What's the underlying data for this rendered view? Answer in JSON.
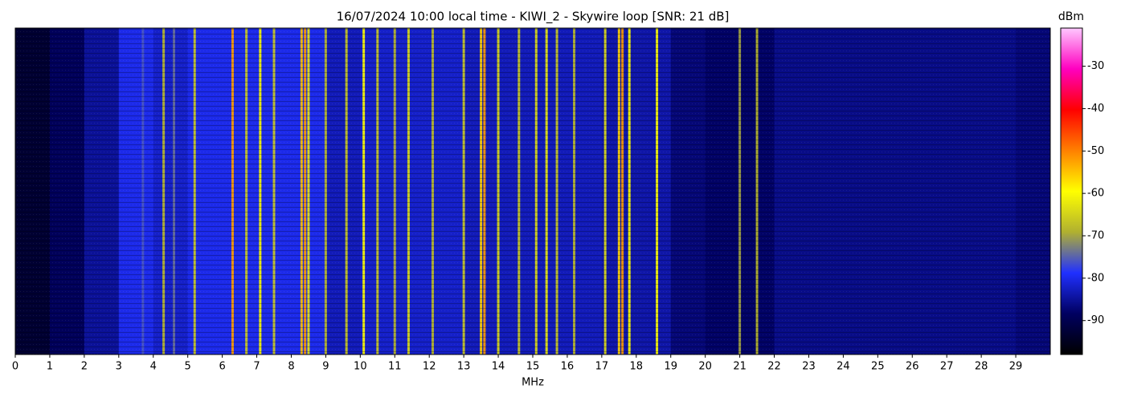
{
  "chart_data": {
    "type": "spectrogram",
    "title": "16/07/2024 10:00 local time - KIWI_2 - Skywire loop [SNR: 21 dB]",
    "x_label": "MHz",
    "colorbar_label": "dBm",
    "xlim": [
      0,
      30
    ],
    "xticks": [
      0,
      1,
      2,
      3,
      4,
      5,
      6,
      7,
      8,
      9,
      10,
      11,
      12,
      13,
      14,
      15,
      16,
      17,
      18,
      19,
      20,
      21,
      22,
      23,
      24,
      25,
      26,
      27,
      28,
      29
    ],
    "clim": [
      -98,
      -21
    ],
    "cticks": [
      -90,
      -80,
      -70,
      -60,
      -50,
      -40,
      -30
    ],
    "colormap": [
      "#000000",
      "#000060",
      "#2030ff",
      "#b0b030",
      "#ffff00",
      "#ff8000",
      "#ff0000",
      "#ff00c0",
      "#ffc8ff"
    ],
    "noise_floor": {
      "bins": [
        0,
        1,
        2,
        3,
        4,
        5,
        6,
        7,
        8,
        9,
        10,
        11,
        12,
        13,
        14,
        15,
        16,
        17,
        18,
        19,
        20,
        21,
        22,
        23,
        24,
        25,
        26,
        27,
        28,
        29,
        30
      ],
      "values": [
        -93,
        -89,
        -85,
        -80,
        -82,
        -80,
        -80,
        -80,
        -80,
        -83,
        -82,
        -82,
        -82,
        -83,
        -83,
        -83,
        -83,
        -84,
        -84,
        -87,
        -88,
        -88,
        -86,
        -86,
        -86,
        -86,
        -86,
        -86,
        -86,
        -87
      ]
    },
    "signals": [
      {
        "freq": 3.7,
        "level": -76
      },
      {
        "freq": 4.3,
        "level": -68
      },
      {
        "freq": 4.6,
        "level": -74
      },
      {
        "freq": 5.2,
        "level": -66
      },
      {
        "freq": 6.3,
        "level": -52
      },
      {
        "freq": 6.7,
        "level": -66
      },
      {
        "freq": 7.1,
        "level": -60
      },
      {
        "freq": 7.5,
        "level": -66
      },
      {
        "freq": 8.3,
        "level": -55
      },
      {
        "freq": 8.4,
        "level": -52
      },
      {
        "freq": 8.5,
        "level": -62
      },
      {
        "freq": 9.0,
        "level": -68
      },
      {
        "freq": 9.6,
        "level": -66
      },
      {
        "freq": 10.1,
        "level": -60
      },
      {
        "freq": 10.5,
        "level": -66
      },
      {
        "freq": 11.0,
        "level": -68
      },
      {
        "freq": 11.4,
        "level": -64
      },
      {
        "freq": 12.1,
        "level": -68
      },
      {
        "freq": 13.0,
        "level": -66
      },
      {
        "freq": 13.5,
        "level": -56
      },
      {
        "freq": 13.6,
        "level": -52
      },
      {
        "freq": 14.0,
        "level": -64
      },
      {
        "freq": 14.6,
        "level": -66
      },
      {
        "freq": 15.1,
        "level": -64
      },
      {
        "freq": 15.4,
        "level": -62
      },
      {
        "freq": 15.7,
        "level": -66
      },
      {
        "freq": 16.2,
        "level": -68
      },
      {
        "freq": 17.1,
        "level": -64
      },
      {
        "freq": 17.5,
        "level": -56
      },
      {
        "freq": 17.6,
        "level": -52
      },
      {
        "freq": 17.8,
        "level": -60
      },
      {
        "freq": 18.6,
        "level": -60
      },
      {
        "freq": 21.0,
        "level": -70
      },
      {
        "freq": 21.5,
        "level": -68
      }
    ]
  }
}
